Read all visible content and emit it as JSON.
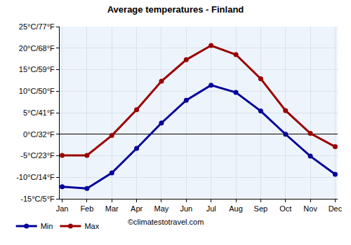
{
  "chart_data": {
    "type": "line",
    "title": "Average temperatures - Finland",
    "categories": [
      "Jan",
      "Feb",
      "Mar",
      "Apr",
      "May",
      "Jun",
      "Jul",
      "Aug",
      "Sep",
      "Oct",
      "Nov",
      "Dec"
    ],
    "series": [
      {
        "name": "Min",
        "color": "#000099",
        "marker": "circle",
        "line_style": "solid",
        "values": [
          -12.2,
          -12.6,
          -9.0,
          -3.3,
          2.6,
          7.9,
          11.4,
          9.7,
          5.4,
          0.0,
          -5.1,
          -9.3
        ]
      },
      {
        "name": "Max",
        "color": "#990000",
        "marker": "circle",
        "line_style": "solid",
        "values": [
          -4.9,
          -4.9,
          -0.3,
          5.7,
          12.3,
          17.3,
          20.6,
          18.5,
          12.9,
          5.5,
          0.2,
          -2.9
        ]
      }
    ],
    "ylim": [
      -15,
      25
    ],
    "yticks": [
      {
        "value": -15,
        "label": "-15°C/5°F"
      },
      {
        "value": -10,
        "label": "-10°C/14°F"
      },
      {
        "value": -5,
        "label": "-5°C/23°F"
      },
      {
        "value": 0,
        "label": "0°C/32°F"
      },
      {
        "value": 5,
        "label": "5°C/41°F"
      },
      {
        "value": 10,
        "label": "10°C/50°F"
      },
      {
        "value": 15,
        "label": "15°C/59°F"
      },
      {
        "value": 20,
        "label": "20°C/68°F"
      },
      {
        "value": 25,
        "label": "25°C/77°F"
      }
    ],
    "grid": true,
    "legend": "bottom",
    "annotations": [
      "©climatestotravel.com"
    ]
  }
}
